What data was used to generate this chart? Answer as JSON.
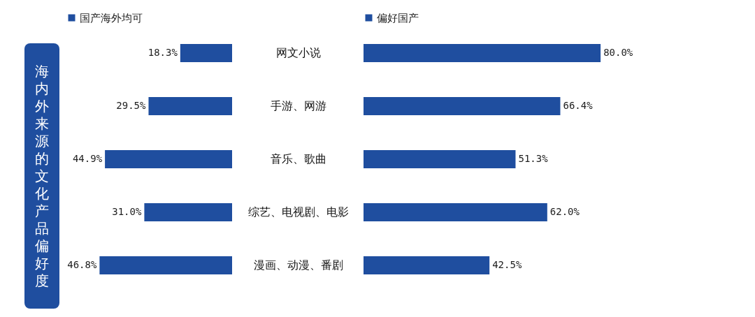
{
  "chart_data": [
    {
      "type": "bar",
      "orientation": "horizontal",
      "title": "海内外来源的文化产品偏好度",
      "categories": [
        "网文小说",
        "手游、网游",
        "音乐、歌曲",
        "综艺、电视剧、电影",
        "漫画、动漫、番剧"
      ],
      "series": [
        {
          "name": "国产海外均可",
          "color": "#1f4e9f",
          "values": [
            18.3,
            29.5,
            44.9,
            31.0,
            46.8
          ],
          "value_labels": [
            "18.3%",
            "29.5%",
            "44.9%",
            "31.0%",
            "46.8%"
          ]
        }
      ],
      "legend": "top"
    },
    {
      "type": "bar",
      "orientation": "horizontal",
      "categories": [
        null,
        null,
        null,
        null,
        null
      ],
      "series": [
        {
          "name": "偏好国产",
          "color": "#1f4e9f",
          "values": [
            80.0,
            66.4,
            51.3,
            62.0,
            42.5
          ],
          "value_labels": [
            "80.0%",
            "66.4%",
            "51.3%",
            "62.0%",
            "42.5%"
          ]
        }
      ],
      "legend": "top"
    }
  ]
}
